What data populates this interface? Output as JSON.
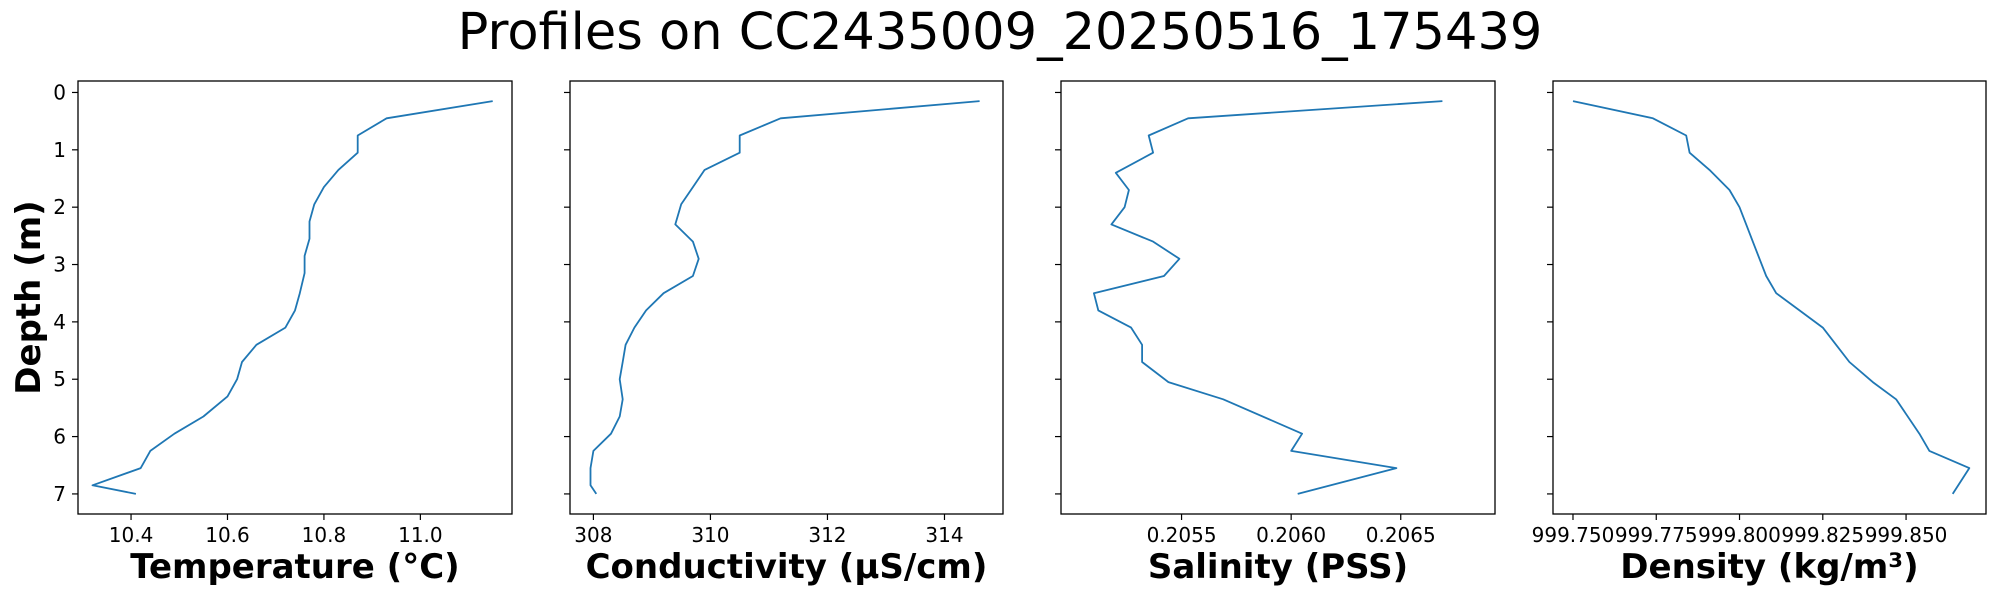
{
  "title": "Profiles on CC2435009_20250516_175439",
  "colors": {
    "line": "#1f77b4",
    "axes": "#000000",
    "background": "#ffffff"
  },
  "chart_data": [
    {
      "type": "line",
      "orientation": "profile (x = variable, y = depth, inverted)",
      "xlabel": "Temperature (°C)",
      "ylabel": "Depth (m)",
      "xlim": [
        10.29,
        11.19
      ],
      "ylim": [
        7.35,
        -0.2
      ],
      "xticks": [
        10.4,
        10.6,
        10.8,
        11.0
      ],
      "xtick_labels": [
        "10.4",
        "10.6",
        "10.8",
        "11.0"
      ],
      "yticks": [
        0,
        1,
        2,
        3,
        4,
        5,
        6,
        7
      ],
      "ytick_labels": [
        "0",
        "1",
        "2",
        "3",
        "4",
        "5",
        "6",
        "7"
      ],
      "grid": false,
      "series": [
        {
          "x": [
            11.15,
            10.93,
            10.87,
            10.87,
            10.83,
            10.8,
            10.78,
            10.77,
            10.77,
            10.76,
            10.76,
            10.75,
            10.74,
            10.72,
            10.66,
            10.63,
            10.62,
            10.6,
            10.55,
            10.49,
            10.44,
            10.42,
            10.32,
            10.41
          ],
          "y": [
            0.15,
            0.45,
            0.75,
            1.05,
            1.35,
            1.65,
            1.95,
            2.25,
            2.55,
            2.85,
            3.15,
            3.5,
            3.8,
            4.1,
            4.4,
            4.7,
            5.0,
            5.3,
            5.65,
            5.95,
            6.25,
            6.55,
            6.85,
            7.0
          ]
        }
      ]
    },
    {
      "type": "line",
      "orientation": "profile (x = variable, y = depth, inverted)",
      "xlabel": "Conductivity (µS/cm)",
      "ylabel": "",
      "xlim": [
        307.6,
        315.0
      ],
      "ylim": [
        7.35,
        -0.2
      ],
      "xticks": [
        308,
        310,
        312,
        314
      ],
      "xtick_labels": [
        "308",
        "310",
        "312",
        "314"
      ],
      "yticks": [
        0,
        1,
        2,
        3,
        4,
        5,
        6,
        7
      ],
      "grid": false,
      "series": [
        {
          "x": [
            314.6,
            311.2,
            310.5,
            310.5,
            309.9,
            309.7,
            309.5,
            309.4,
            309.7,
            309.8,
            309.7,
            309.2,
            308.9,
            308.7,
            308.55,
            308.5,
            308.45,
            308.5,
            308.45,
            308.3,
            308.0,
            307.95,
            307.95,
            308.05
          ],
          "y": [
            0.15,
            0.45,
            0.75,
            1.05,
            1.35,
            1.65,
            1.95,
            2.3,
            2.6,
            2.9,
            3.2,
            3.5,
            3.8,
            4.1,
            4.4,
            4.7,
            5.0,
            5.35,
            5.65,
            5.95,
            6.25,
            6.55,
            6.85,
            7.0
          ]
        }
      ]
    },
    {
      "type": "line",
      "orientation": "profile (x = variable, y = depth, inverted)",
      "xlabel": "Salinity (PSS)",
      "ylabel": "",
      "xlim": [
        0.20495,
        0.20693
      ],
      "ylim": [
        7.35,
        -0.2
      ],
      "xticks": [
        0.2055,
        0.206,
        0.2065
      ],
      "xtick_labels": [
        "0.2055",
        "0.2060",
        "0.2065"
      ],
      "yticks": [
        0,
        1,
        2,
        3,
        4,
        5,
        6,
        7
      ],
      "grid": false,
      "series": [
        {
          "x": [
            0.20669,
            0.20553,
            0.20535,
            0.20537,
            0.2052,
            0.20526,
            0.20524,
            0.20518,
            0.20537,
            0.20549,
            0.20542,
            0.2051,
            0.20512,
            0.20527,
            0.20532,
            0.20532,
            0.20544,
            0.20569,
            0.20605,
            0.206,
            0.20648,
            0.20603
          ],
          "y": [
            0.15,
            0.45,
            0.75,
            1.05,
            1.4,
            1.7,
            2.0,
            2.3,
            2.6,
            2.9,
            3.2,
            3.5,
            3.8,
            4.1,
            4.4,
            4.7,
            5.05,
            5.35,
            5.95,
            6.25,
            6.55,
            7.0
          ]
        }
      ]
    },
    {
      "type": "line",
      "orientation": "profile (x = variable, y = depth, inverted)",
      "xlabel": "Density (kg/m³)",
      "ylabel": "",
      "xlim": [
        999.744,
        999.874
      ],
      "ylim": [
        7.35,
        -0.2
      ],
      "xticks": [
        999.75,
        999.775,
        999.8,
        999.825,
        999.85
      ],
      "xtick_labels": [
        "999.750",
        "999.775",
        "999.800",
        "999.825",
        "999.850"
      ],
      "yticks": [
        0,
        1,
        2,
        3,
        4,
        5,
        6,
        7
      ],
      "grid": false,
      "series": [
        {
          "x": [
            999.75,
            999.774,
            999.784,
            999.785,
            999.791,
            999.797,
            999.8,
            999.802,
            999.804,
            999.806,
            999.808,
            999.811,
            999.818,
            999.825,
            999.829,
            999.833,
            999.84,
            999.847,
            999.854,
            999.857,
            999.869,
            999.864
          ],
          "y": [
            0.15,
            0.45,
            0.75,
            1.05,
            1.35,
            1.7,
            2.0,
            2.3,
            2.6,
            2.9,
            3.2,
            3.5,
            3.8,
            4.1,
            4.4,
            4.7,
            5.05,
            5.35,
            5.95,
            6.25,
            6.55,
            7.0
          ]
        }
      ]
    }
  ]
}
